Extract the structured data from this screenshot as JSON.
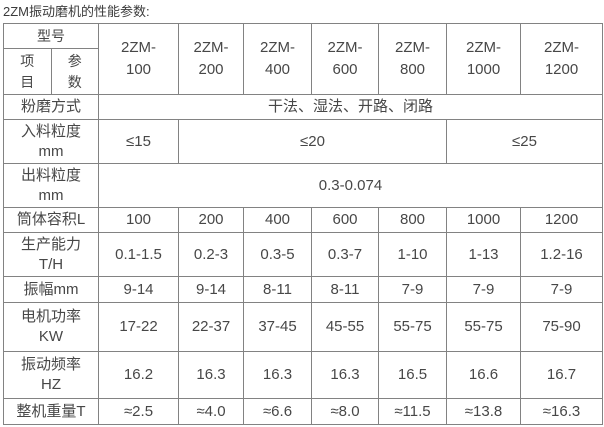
{
  "title": "2ZM振动磨机的性能参数:",
  "colors": {
    "border": "#828282",
    "text": "#474747",
    "background": "#ffffff"
  },
  "table": {
    "corner": {
      "model": "型号",
      "item": "项目",
      "param": "参数"
    },
    "models": [
      "2ZM-100",
      "2ZM-200",
      "2ZM-400",
      "2ZM-600",
      "2ZM-800",
      "2ZM-1000",
      "2ZM-1200"
    ],
    "rows": [
      {
        "label_lines": [
          "粉磨方式"
        ],
        "cells": [
          {
            "value": "干法、湿法、开路、闭路",
            "span": 7
          }
        ]
      },
      {
        "label_lines": [
          "入料粒度",
          "mm"
        ],
        "cells": [
          {
            "value": "≤15",
            "span": 1
          },
          {
            "value": "≤20",
            "span": 4
          },
          {
            "value": "≤25",
            "span": 2
          }
        ]
      },
      {
        "label_lines": [
          "出料粒度",
          "mm"
        ],
        "cells": [
          {
            "value": "0.3-0.074",
            "span": 7
          }
        ]
      },
      {
        "label_lines": [
          "筒体容积L"
        ],
        "cells": [
          {
            "value": "100",
            "span": 1
          },
          {
            "value": "200",
            "span": 1
          },
          {
            "value": "400",
            "span": 1
          },
          {
            "value": "600",
            "span": 1
          },
          {
            "value": "800",
            "span": 1
          },
          {
            "value": "1000",
            "span": 1
          },
          {
            "value": "1200",
            "span": 1
          }
        ]
      },
      {
        "label_lines": [
          "生产能力",
          "T/H"
        ],
        "cells": [
          {
            "value": "0.1-1.5",
            "span": 1
          },
          {
            "value": "0.2-3",
            "span": 1
          },
          {
            "value": "0.3-5",
            "span": 1
          },
          {
            "value": "0.3-7",
            "span": 1
          },
          {
            "value": "1-10",
            "span": 1
          },
          {
            "value": "1-13",
            "span": 1
          },
          {
            "value": "1.2-16",
            "span": 1
          }
        ]
      },
      {
        "label_lines": [
          "振幅mm"
        ],
        "cells": [
          {
            "value": "9-14",
            "span": 1
          },
          {
            "value": "9-14",
            "span": 1
          },
          {
            "value": "8-11",
            "span": 1
          },
          {
            "value": "8-11",
            "span": 1
          },
          {
            "value": "7-9",
            "span": 1
          },
          {
            "value": "7-9",
            "span": 1
          },
          {
            "value": "7-9",
            "span": 1
          }
        ]
      },
      {
        "label_lines": [
          "电机功率",
          "KW"
        ],
        "cells": [
          {
            "value": "17-22",
            "span": 1
          },
          {
            "value": "22-37",
            "span": 1
          },
          {
            "value": "37-45",
            "span": 1
          },
          {
            "value": "45-55",
            "span": 1
          },
          {
            "value": "55-75",
            "span": 1
          },
          {
            "value": "55-75",
            "span": 1
          },
          {
            "value": "75-90",
            "span": 1
          }
        ]
      },
      {
        "label_lines": [
          "振动频率",
          "HZ"
        ],
        "cells": [
          {
            "value": "16.2",
            "span": 1
          },
          {
            "value": "16.3",
            "span": 1
          },
          {
            "value": "16.3",
            "span": 1
          },
          {
            "value": "16.3",
            "span": 1
          },
          {
            "value": "16.5",
            "span": 1
          },
          {
            "value": "16.6",
            "span": 1
          },
          {
            "value": "16.7",
            "span": 1
          }
        ]
      },
      {
        "label_lines": [
          "整机重量T"
        ],
        "cells": [
          {
            "value": "≈2.5",
            "span": 1
          },
          {
            "value": "≈4.0",
            "span": 1
          },
          {
            "value": "≈6.6",
            "span": 1
          },
          {
            "value": "≈8.0",
            "span": 1
          },
          {
            "value": "≈11.5",
            "span": 1
          },
          {
            "value": "≈13.8",
            "span": 1
          },
          {
            "value": "≈16.3",
            "span": 1
          }
        ]
      }
    ]
  },
  "chart_data": {
    "type": "table",
    "title": "2ZM振动磨机的性能参数",
    "columns": [
      "2ZM-100",
      "2ZM-200",
      "2ZM-400",
      "2ZM-600",
      "2ZM-800",
      "2ZM-1000",
      "2ZM-1200"
    ],
    "rows": {
      "粉磨方式": "干法、湿法、开路、闭路",
      "入料粒度mm": [
        "≤15",
        "≤20",
        "≤20",
        "≤20",
        "≤20",
        "≤25",
        "≤25"
      ],
      "出料粒度mm": "0.3-0.074",
      "筒体容积L": [
        100,
        200,
        400,
        600,
        800,
        1000,
        1200
      ],
      "生产能力T/H": [
        "0.1-1.5",
        "0.2-3",
        "0.3-5",
        "0.3-7",
        "1-10",
        "1-13",
        "1.2-16"
      ],
      "振幅mm": [
        "9-14",
        "9-14",
        "8-11",
        "8-11",
        "7-9",
        "7-9",
        "7-9"
      ],
      "电机功率KW": [
        "17-22",
        "22-37",
        "37-45",
        "45-55",
        "55-75",
        "55-75",
        "75-90"
      ],
      "振动频率HZ": [
        16.2,
        16.3,
        16.3,
        16.3,
        16.5,
        16.6,
        16.7
      ],
      "整机重量T": [
        "≈2.5",
        "≈4.0",
        "≈6.6",
        "≈8.0",
        "≈11.5",
        "≈13.8",
        "≈16.3"
      ]
    }
  }
}
